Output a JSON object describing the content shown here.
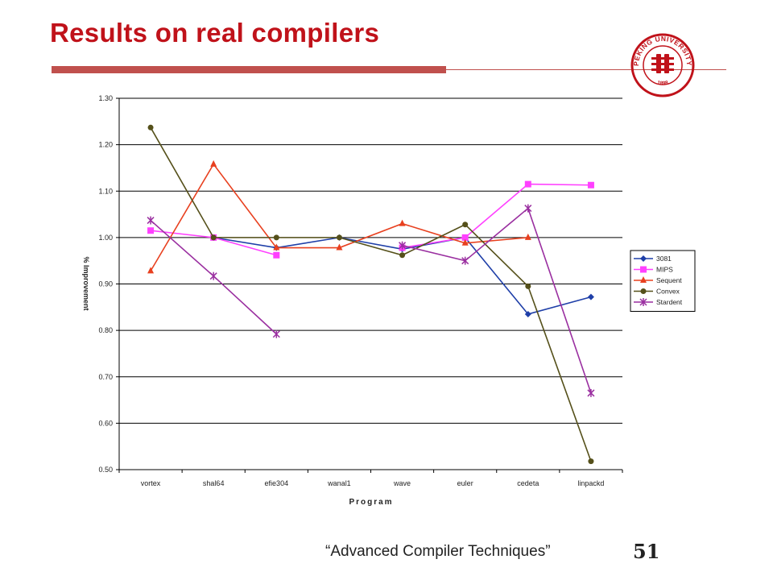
{
  "slide": {
    "title": "Results on real compilers",
    "footer": "“Advanced Compiler Techniques”",
    "page_number": "51",
    "accent_color": "#c0121a",
    "logo": {
      "text_top": "PEKING UNIVERSITY",
      "year": "1898",
      "color": "#c0121a"
    }
  },
  "chart_data": {
    "type": "line",
    "title": "",
    "xlabel": "Program",
    "ylabel": "% Improvement",
    "ylim": [
      0.5,
      1.3
    ],
    "yticks": [
      "0.50",
      "0.60",
      "0.70",
      "0.80",
      "0.90",
      "1.00",
      "1.10",
      "1.20",
      "1.30"
    ],
    "grid": true,
    "legend_position": "right",
    "categories": [
      "vortex",
      "shal64",
      "efie304",
      "wanal1",
      "wave",
      "euler",
      "cedeta",
      "linpackd"
    ],
    "series": [
      {
        "name": "3081",
        "color": "#1f3fa8",
        "marker": "diamond",
        "values": [
          null,
          1.0,
          0.978,
          1.0,
          0.975,
          1.0,
          0.835,
          0.872
        ]
      },
      {
        "name": "MIPS",
        "color": "#ff40ff",
        "marker": "square",
        "values": [
          1.015,
          1.0,
          0.962,
          null,
          0.978,
          1.0,
          1.115,
          1.113
        ]
      },
      {
        "name": "Sequent",
        "color": "#e8401f",
        "marker": "triangle",
        "values": [
          0.928,
          1.158,
          0.978,
          0.978,
          1.03,
          0.988,
          1.0,
          null
        ]
      },
      {
        "name": "Convex",
        "color": "#55501a",
        "marker": "circle",
        "values": [
          1.237,
          1.0,
          1.0,
          1.0,
          0.962,
          1.028,
          0.895,
          0.518
        ]
      },
      {
        "name": "Stardent",
        "color": "#9a2fa0",
        "marker": "star",
        "values": [
          1.037,
          0.917,
          0.792,
          null,
          0.983,
          0.95,
          1.063,
          0.665
        ]
      }
    ]
  }
}
